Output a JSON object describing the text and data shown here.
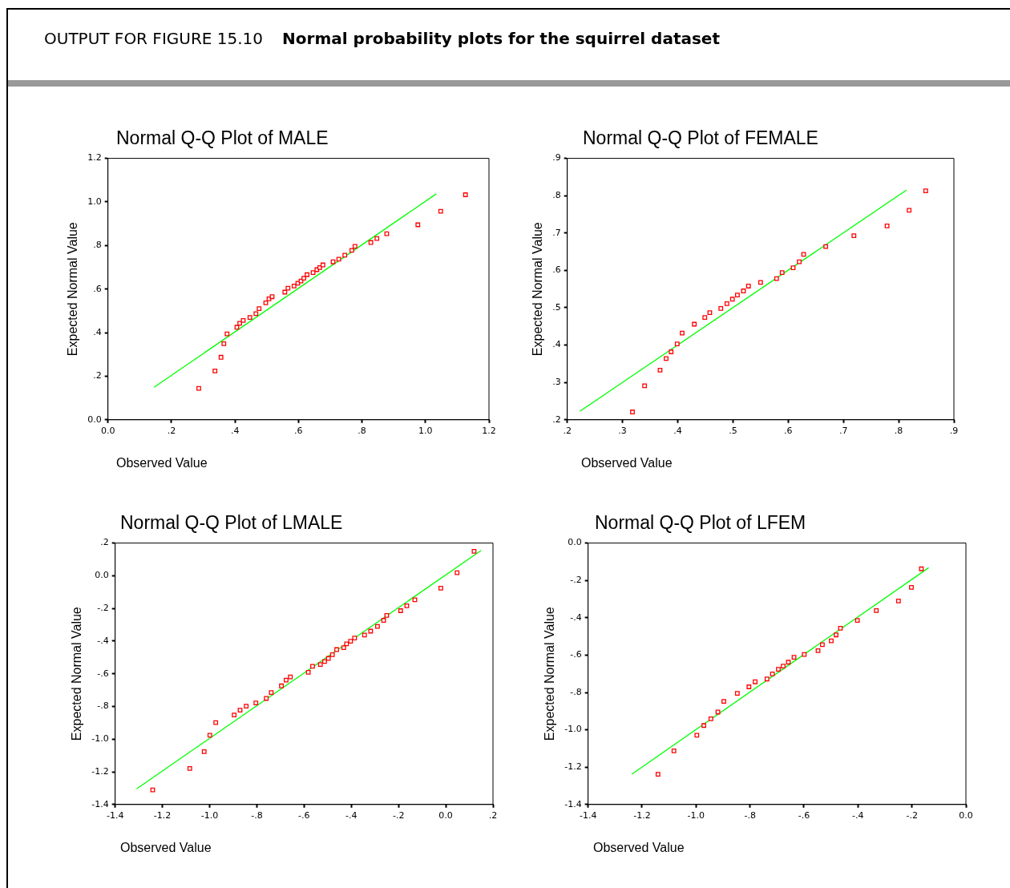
{
  "chart_data": [
    {
      "type": "scatter",
      "title": "Normal Q-Q Plot of MALE",
      "xlabel": "Observed Value",
      "ylabel": "Expected Normal Value",
      "marker": "square",
      "annotations": [
        "OUTPUT FOR FIGURE 15.10",
        "Normal probability plots for the squirrel dataset"
      ],
      "xlim": [
        0,
        1.2
      ],
      "xticks": [
        {
          "value": 0,
          "label": "0.0"
        },
        {
          "value": 0.2,
          "label": ".2"
        },
        {
          "value": 0.4,
          "label": ".4"
        },
        {
          "value": 0.6,
          "label": ".6"
        },
        {
          "value": 0.8,
          "label": ".8"
        },
        {
          "value": 1,
          "label": "1.0"
        },
        {
          "value": 1.2,
          "label": "1.2"
        }
      ],
      "ylim": [
        0,
        1.2
      ],
      "yticks": [
        {
          "value": 0,
          "label": "0.0"
        },
        {
          "value": 0.2,
          "label": ".2"
        },
        {
          "value": 0.4,
          "label": ".4"
        },
        {
          "value": 0.6,
          "label": ".6"
        },
        {
          "value": 0.8,
          "label": ".8"
        },
        {
          "value": 1,
          "label": "1.0"
        },
        {
          "value": 1.2,
          "label": "1.2"
        }
      ],
      "series": [
        {
          "type": "scatter",
          "color": "#ff0000",
          "x": [
            0.286,
            0.337,
            0.356,
            0.365,
            0.375,
            0.406,
            0.415,
            0.426,
            0.447,
            0.466,
            0.476,
            0.497,
            0.507,
            0.517,
            0.557,
            0.567,
            0.586,
            0.598,
            0.608,
            0.617,
            0.627,
            0.646,
            0.658,
            0.667,
            0.677,
            0.709,
            0.727,
            0.746,
            0.768,
            0.778,
            0.828,
            0.847,
            0.878,
            0.976,
            1.048,
            1.126
          ],
          "values": [
            0.144,
            0.224,
            0.287,
            0.349,
            0.394,
            0.425,
            0.443,
            0.456,
            0.47,
            0.487,
            0.51,
            0.537,
            0.555,
            0.565,
            0.586,
            0.604,
            0.614,
            0.627,
            0.637,
            0.65,
            0.666,
            0.676,
            0.689,
            0.699,
            0.711,
            0.725,
            0.737,
            0.756,
            0.778,
            0.796,
            0.814,
            0.832,
            0.854,
            0.895,
            0.957,
            1.033
          ]
        },
        {
          "type": "line",
          "color": "#00ff00",
          "marker": "none",
          "x": [
            0.145,
            1.034
          ],
          "values": [
            0.149,
            1.037
          ]
        }
      ]
    },
    {
      "type": "scatter",
      "title": "Normal Q-Q Plot of FEMALE",
      "xlabel": "Observed Value",
      "ylabel": "Expected Normal Value",
      "marker": "square",
      "xlim": [
        0.2,
        0.9
      ],
      "xticks": [
        {
          "value": 0.2,
          "label": ".2"
        },
        {
          "value": 0.3,
          "label": ".3"
        },
        {
          "value": 0.4,
          "label": ".4"
        },
        {
          "value": 0.5,
          "label": ".5"
        },
        {
          "value": 0.6,
          "label": ".6"
        },
        {
          "value": 0.7,
          "label": ".7"
        },
        {
          "value": 0.8,
          "label": ".8"
        },
        {
          "value": 0.9,
          "label": ".9"
        }
      ],
      "ylim": [
        0.2,
        0.9
      ],
      "yticks": [
        {
          "value": 0.2,
          "label": ".2"
        },
        {
          "value": 0.3,
          "label": ".3"
        },
        {
          "value": 0.4,
          "label": ".4"
        },
        {
          "value": 0.5,
          "label": ".5"
        },
        {
          "value": 0.6,
          "label": ".6"
        },
        {
          "value": 0.7,
          "label": ".7"
        },
        {
          "value": 0.8,
          "label": ".8"
        },
        {
          "value": 0.9,
          "label": ".9"
        }
      ],
      "series": [
        {
          "type": "scatter",
          "color": "#ff0000",
          "x": [
            0.318,
            0.34,
            0.368,
            0.379,
            0.388,
            0.399,
            0.408,
            0.43,
            0.449,
            0.458,
            0.478,
            0.489,
            0.499,
            0.508,
            0.519,
            0.528,
            0.55,
            0.579,
            0.589,
            0.609,
            0.62,
            0.628,
            0.668,
            0.719,
            0.779,
            0.819,
            0.849
          ],
          "values": [
            0.221,
            0.291,
            0.333,
            0.364,
            0.382,
            0.403,
            0.432,
            0.456,
            0.474,
            0.487,
            0.498,
            0.511,
            0.523,
            0.534,
            0.545,
            0.558,
            0.568,
            0.578,
            0.594,
            0.607,
            0.623,
            0.643,
            0.664,
            0.693,
            0.719,
            0.761,
            0.813
          ]
        },
        {
          "type": "line",
          "color": "#00ff00",
          "marker": "none",
          "x": [
            0.223,
            0.814
          ],
          "values": [
            0.223,
            0.815
          ]
        }
      ]
    },
    {
      "type": "scatter",
      "title": "Normal Q-Q Plot of LMALE",
      "xlabel": "Observed Value",
      "ylabel": "Expected Normal Value",
      "marker": "square",
      "xlim": [
        -1.4,
        0.2
      ],
      "xticks": [
        {
          "value": -1.4,
          "label": "-1.4"
        },
        {
          "value": -1.2,
          "label": "-1.2"
        },
        {
          "value": -1,
          "label": "-1.0"
        },
        {
          "value": -0.8,
          "label": "-.8"
        },
        {
          "value": -0.6,
          "label": "-.6"
        },
        {
          "value": -0.4,
          "label": "-.4"
        },
        {
          "value": -0.2,
          "label": "-.2"
        },
        {
          "value": 0,
          "label": "0.0"
        },
        {
          "value": 0.2,
          "label": ".2"
        }
      ],
      "ylim": [
        -1.4,
        0.2
      ],
      "yticks": [
        {
          "value": -1.4,
          "label": "-1.4"
        },
        {
          "value": -1.2,
          "label": "-1.2"
        },
        {
          "value": -1,
          "label": "-1.0"
        },
        {
          "value": -0.8,
          "label": "-.8"
        },
        {
          "value": -0.6,
          "label": "-.6"
        },
        {
          "value": -0.4,
          "label": "-.4"
        },
        {
          "value": -0.2,
          "label": "-.2"
        },
        {
          "value": 0,
          "label": "0.0"
        },
        {
          "value": 0.2,
          "label": ".2"
        }
      ],
      "series": [
        {
          "type": "scatter",
          "color": "#ff0000",
          "x": [
            -1.241,
            -1.084,
            -1.023,
            -0.999,
            -0.974,
            -0.896,
            -0.871,
            -0.845,
            -0.804,
            -0.76,
            -0.739,
            -0.696,
            -0.676,
            -0.658,
            -0.582,
            -0.564,
            -0.531,
            -0.513,
            -0.497,
            -0.48,
            -0.462,
            -0.432,
            -0.42,
            -0.403,
            -0.386,
            -0.344,
            -0.318,
            -0.289,
            -0.263,
            -0.25,
            -0.191,
            -0.165,
            -0.131,
            -0.021,
            0.048,
            0.12
          ],
          "values": [
            -1.311,
            -1.18,
            -1.077,
            -0.976,
            -0.899,
            -0.852,
            -0.823,
            -0.798,
            -0.779,
            -0.751,
            -0.715,
            -0.674,
            -0.639,
            -0.619,
            -0.591,
            -0.554,
            -0.543,
            -0.525,
            -0.506,
            -0.483,
            -0.452,
            -0.44,
            -0.417,
            -0.401,
            -0.381,
            -0.363,
            -0.339,
            -0.31,
            -0.273,
            -0.243,
            -0.214,
            -0.184,
            -0.147,
            -0.076,
            0.018,
            0.15
          ]
        },
        {
          "type": "line",
          "color": "#00ff00",
          "marker": "none",
          "x": [
            -1.309,
            0.15
          ],
          "values": [
            -1.304,
            0.155
          ]
        }
      ]
    },
    {
      "type": "scatter",
      "title": "Normal Q-Q Plot of LFEM",
      "xlabel": "Observed Value",
      "ylabel": "Expected Normal Value",
      "marker": "square",
      "xlim": [
        -1.4,
        0
      ],
      "xticks": [
        {
          "value": -1.4,
          "label": "-1.4"
        },
        {
          "value": -1.2,
          "label": "-1.2"
        },
        {
          "value": -1,
          "label": "-1.0"
        },
        {
          "value": -0.8,
          "label": "-.8"
        },
        {
          "value": -0.6,
          "label": "-.6"
        },
        {
          "value": -0.4,
          "label": "-.4"
        },
        {
          "value": -0.2,
          "label": "-.2"
        },
        {
          "value": 0,
          "label": "0.0"
        }
      ],
      "ylim": [
        -1.4,
        0
      ],
      "yticks": [
        {
          "value": -1.4,
          "label": "-1.4"
        },
        {
          "value": -1.2,
          "label": "-1.2"
        },
        {
          "value": -1,
          "label": "-1.0"
        },
        {
          "value": -0.8,
          "label": "-.8"
        },
        {
          "value": -0.6,
          "label": "-.6"
        },
        {
          "value": -0.4,
          "label": "-.4"
        },
        {
          "value": -0.2,
          "label": "-.2"
        },
        {
          "value": 0,
          "label": "0.0"
        }
      ],
      "series": [
        {
          "type": "scatter",
          "color": "#ff0000",
          "x": [
            -1.141,
            -1.082,
            -0.997,
            -0.971,
            -0.945,
            -0.919,
            -0.897,
            -0.847,
            -0.804,
            -0.781,
            -0.737,
            -0.717,
            -0.695,
            -0.677,
            -0.658,
            -0.637,
            -0.599,
            -0.548,
            -0.532,
            -0.499,
            -0.481,
            -0.465,
            -0.402,
            -0.332,
            -0.25,
            -0.202,
            -0.165
          ],
          "values": [
            -1.238,
            -1.113,
            -1.029,
            -0.977,
            -0.941,
            -0.905,
            -0.848,
            -0.805,
            -0.77,
            -0.743,
            -0.728,
            -0.701,
            -0.676,
            -0.659,
            -0.638,
            -0.612,
            -0.597,
            -0.576,
            -0.544,
            -0.524,
            -0.492,
            -0.456,
            -0.414,
            -0.362,
            -0.31,
            -0.237,
            -0.138
          ]
        },
        {
          "type": "line",
          "color": "#00ff00",
          "marker": "none",
          "x": [
            -1.238,
            -0.138
          ],
          "values": [
            -1.238,
            -0.132
          ]
        }
      ]
    }
  ]
}
